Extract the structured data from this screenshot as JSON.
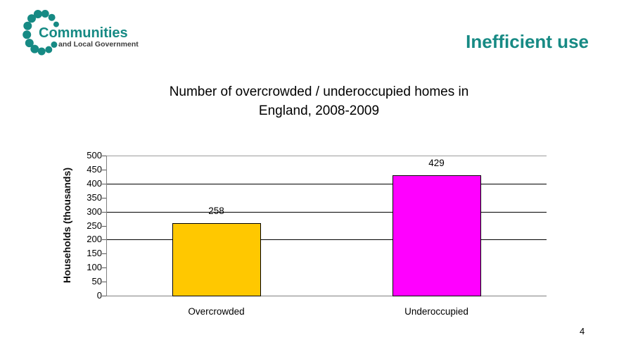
{
  "header": {
    "logo_line1": "Communities",
    "logo_line2": "and Local Government",
    "slide_heading": "Inefficient use"
  },
  "title": {
    "line1": "Number of overcrowded / underoccupied homes in",
    "line2": "England, 2008-2009"
  },
  "chart_data": {
    "type": "bar",
    "title": "Number of overcrowded / underoccupied homes in England, 2008-2009",
    "categories": [
      "Overcrowded",
      "Underoccupied"
    ],
    "values": [
      258,
      429
    ],
    "value_labels": [
      "258",
      "429"
    ],
    "bar_colors": [
      "#ffc800",
      "#ff00ff"
    ],
    "xlabel": "",
    "ylabel": "Households (thousands)",
    "ylim": [
      0,
      500
    ],
    "yticks": [
      0,
      50,
      100,
      150,
      200,
      250,
      300,
      350,
      400,
      450,
      500
    ],
    "black_gridlines": [
      200,
      300,
      400
    ],
    "gray_lines": [
      0,
      500
    ],
    "grid": "horizontal",
    "legend_position": "none"
  },
  "footer": {
    "page_number": "4"
  },
  "colors": {
    "teal_accent": "#178a84",
    "logo_subtext": "#3d3d3d",
    "axis_gray": "#808080",
    "bar_overcrowded": "#ffc800",
    "bar_underoccupied": "#ff00ff"
  }
}
